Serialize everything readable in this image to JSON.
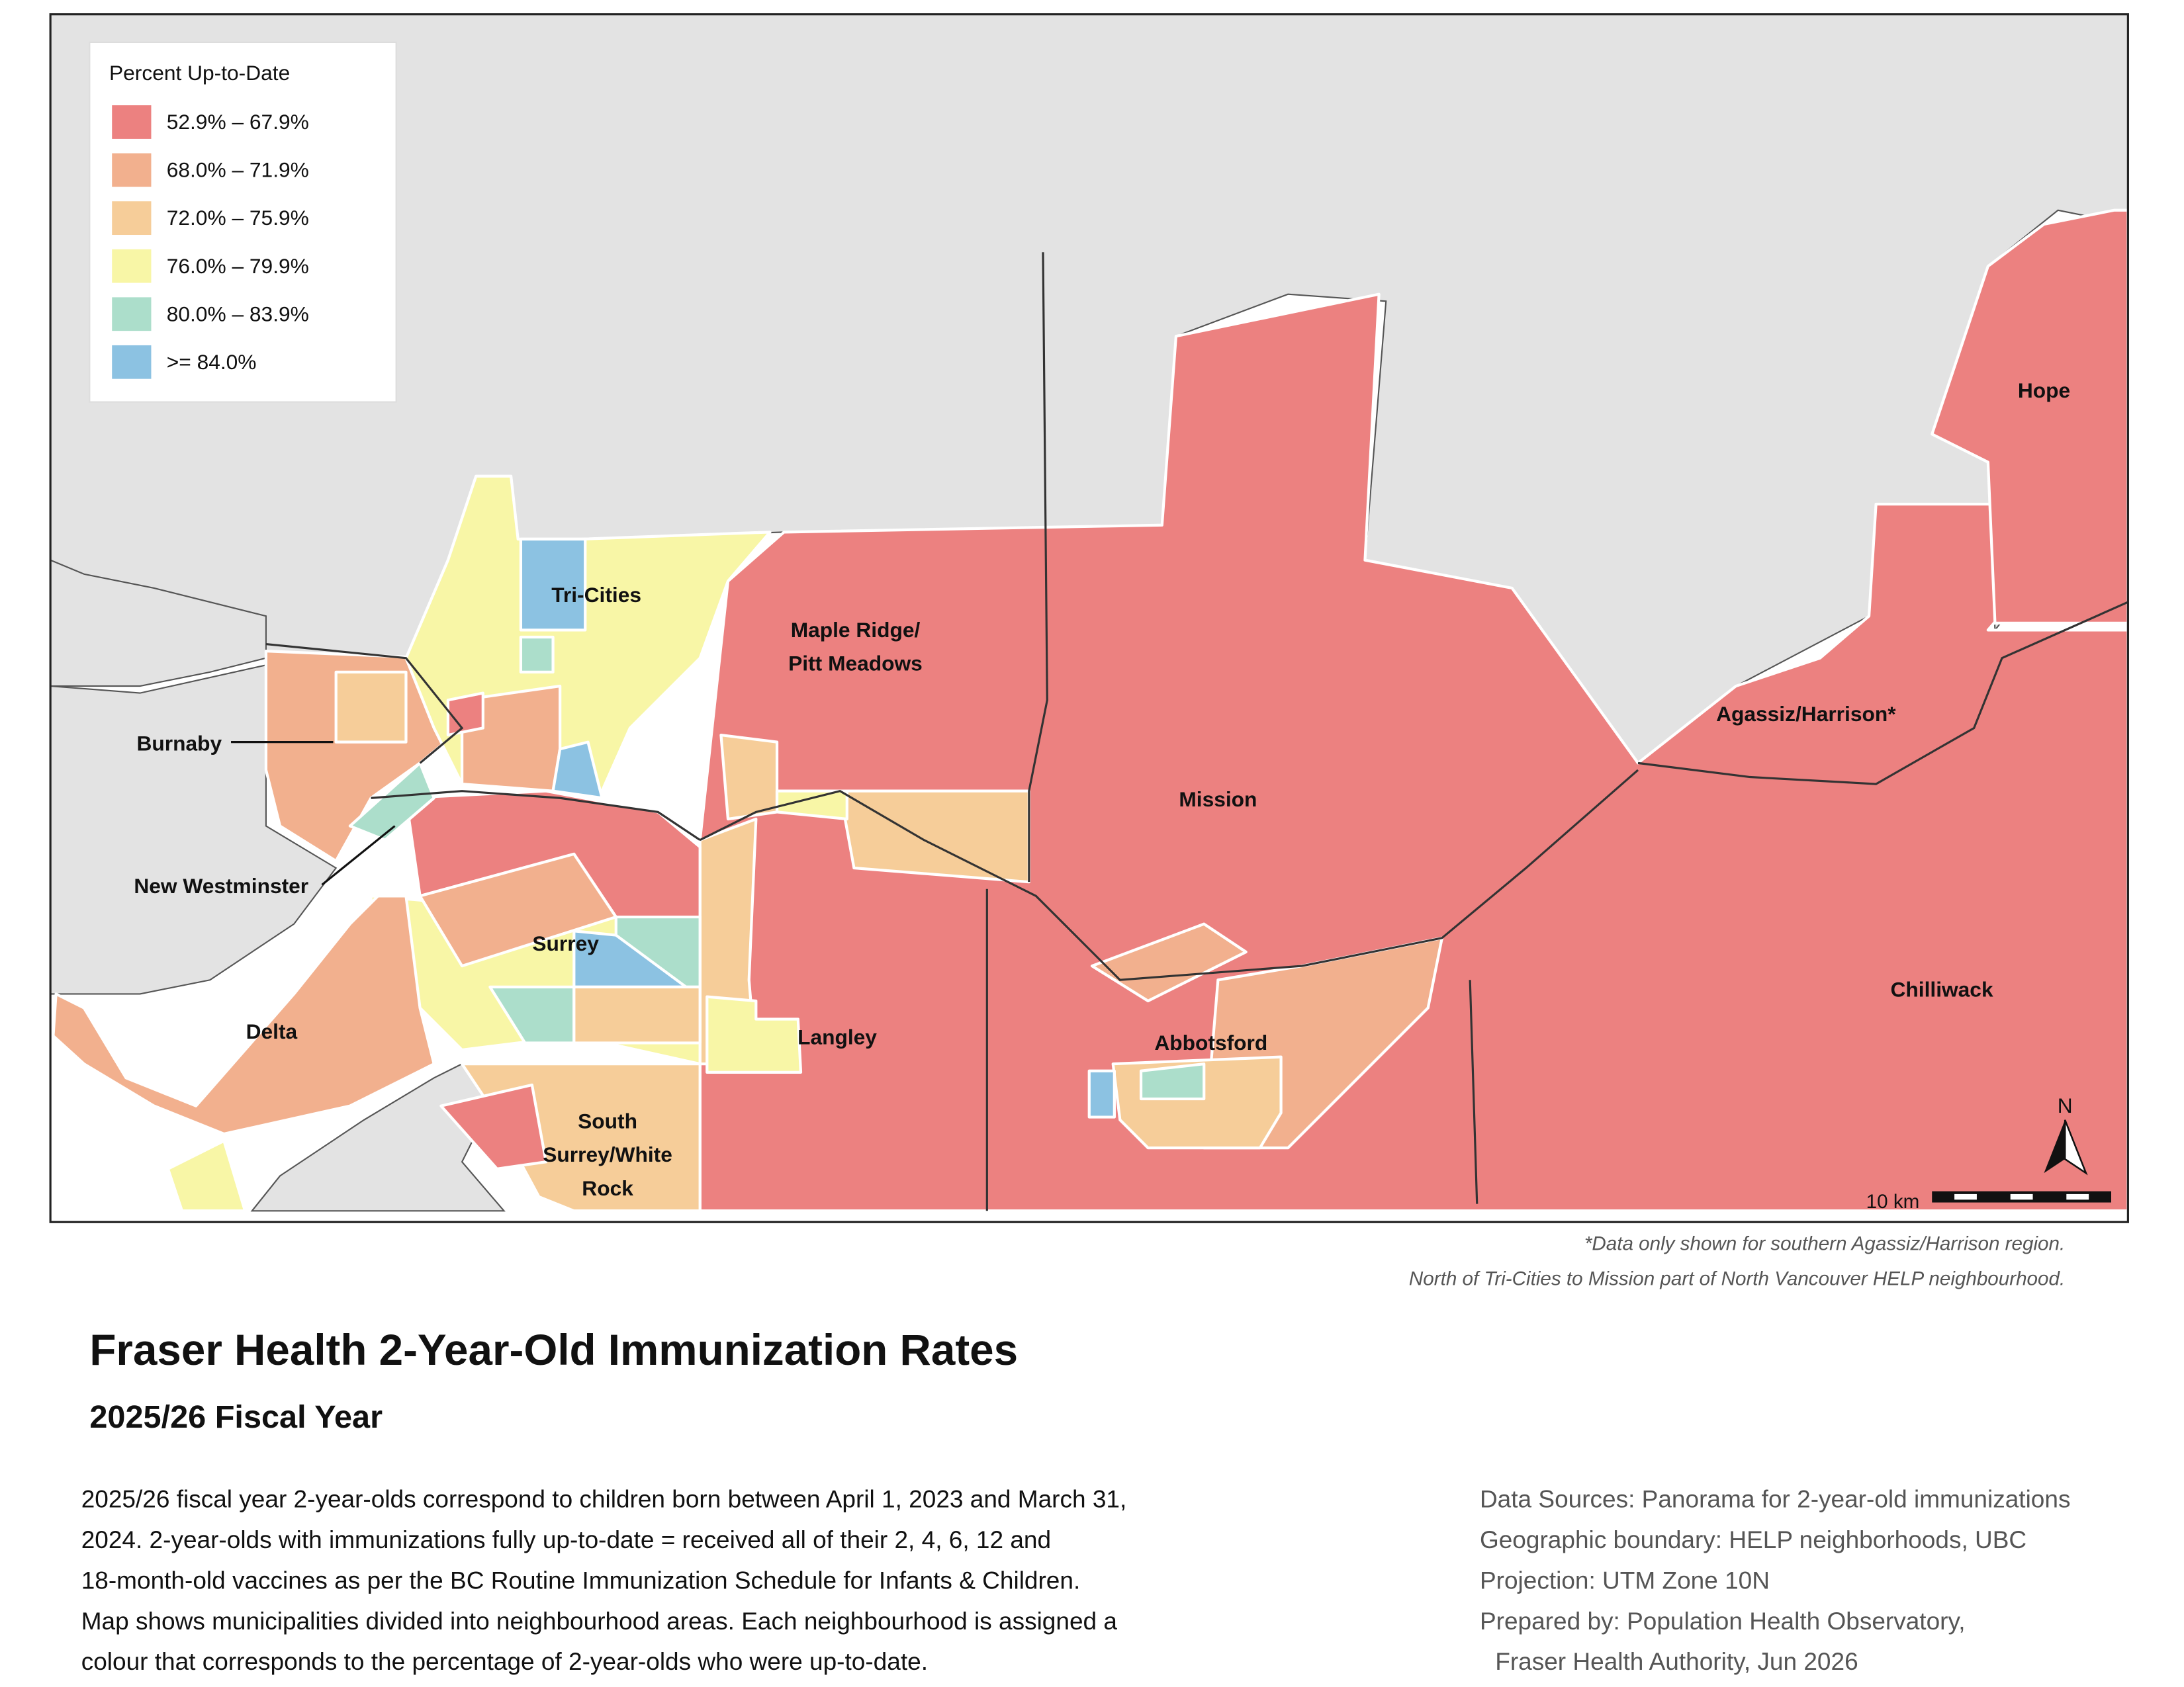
{
  "legend": {
    "title": "Percent Up-to-Date",
    "items": [
      {
        "label": "52.9% – 67.9%",
        "color": "#ec8180"
      },
      {
        "label": "68.0% – 71.9%",
        "color": "#f2b08e"
      },
      {
        "label": "72.0% – 75.9%",
        "color": "#f6cd99"
      },
      {
        "label": "76.0% – 79.9%",
        "color": "#f8f6a6"
      },
      {
        "label": "80.0% – 83.9%",
        "color": "#acdecb"
      },
      {
        "label": ">= 84.0%",
        "color": "#8cc2e2"
      }
    ]
  },
  "regions": {
    "tri_cities": "Tri-Cities",
    "maple_ridge": [
      "Maple Ridge/",
      "Pitt Meadows"
    ],
    "burnaby": "Burnaby",
    "new_westminster": "New Westminster",
    "surrey": "Surrey",
    "delta": "Delta",
    "langley": "Langley",
    "mission": "Mission",
    "abbotsford": "Abbotsford",
    "south_surrey": [
      "South",
      "Surrey/White",
      "Rock"
    ],
    "agassiz": "Agassiz/Harrison*",
    "chilliwack": "Chilliwack",
    "hope": "Hope"
  },
  "scale_bar": "10 km",
  "north_arrow": "N",
  "footnotes": [
    "*Data only shown for southern Agassiz/Harrison region.",
    "North of Tri-Cities to Mission part of North Vancouver HELP neighbourhood."
  ],
  "header": {
    "title": "Fraser Health 2-Year-Old Immunization Rates",
    "subtitle": "2025/26 Fiscal Year"
  },
  "description": [
    "2025/26 fiscal year 2-year-olds correspond to children born between April 1, 2023 and March 31,",
    "2024. 2-year-olds with immunizations fully up-to-date = received all of their 2, 4, 6, 12 and",
    "18-month-old vaccines as per the BC Routine Immunization Schedule for Infants & Children.",
    "Map shows municipalities divided into neighbourhood areas. Each neighbourhood is assigned a",
    "colour that corresponds to the percentage of 2-year-olds who were up-to-date."
  ],
  "sources": [
    "Data Sources: Panorama for 2-year-old immunizations",
    "Geographic boundary: HELP neighborhoods, UBC",
    "Projection: UTM Zone 10N",
    "Prepared by: Population Health Observatory,",
    "Fraser Health Authority, Jun 2026"
  ]
}
